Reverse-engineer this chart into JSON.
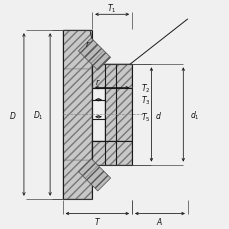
{
  "bg_color": "#f0f0f0",
  "line_color": "#1a1a1a",
  "fig_size": [
    2.3,
    2.3
  ],
  "dpi": 100,
  "lw_main": 0.8,
  "lw_dim": 0.6,
  "lw_hatch": 0.4,
  "font_size": 5.5,
  "hatch_fc": "#c8c8c8",
  "hatch_ec": "#666666",
  "hatch_pattern": "////",
  "roller_fc": "#bbbbbb",
  "roller_ec": "#555555",
  "dim_color": "#111111",
  "ext_color": "#444444"
}
